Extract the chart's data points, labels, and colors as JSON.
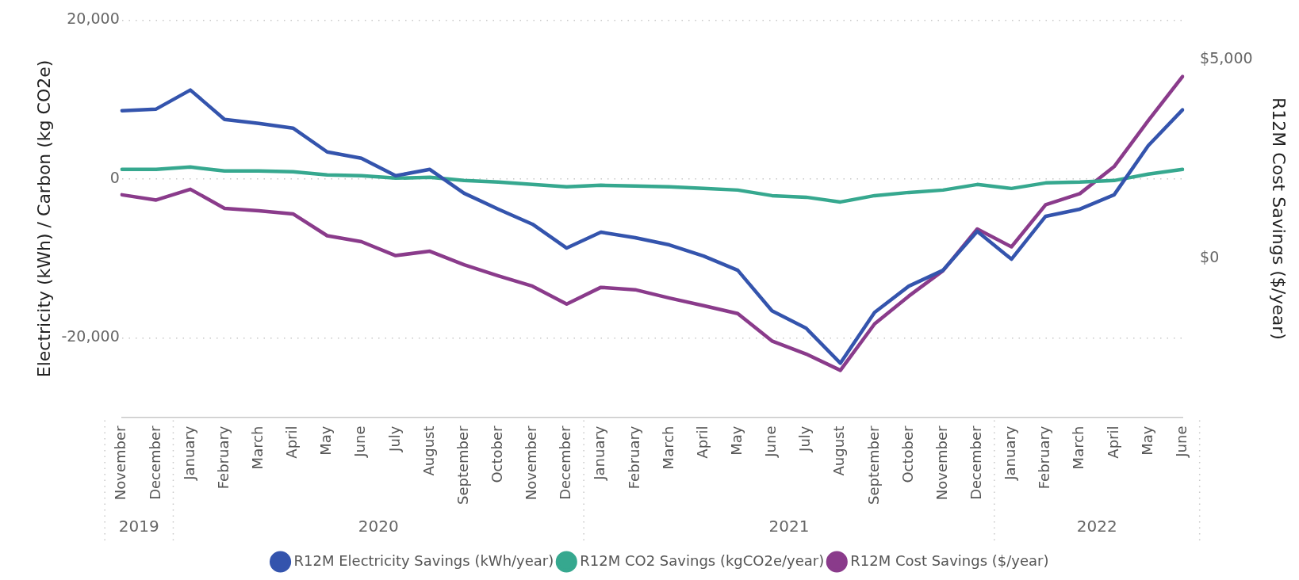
{
  "chart_data": {
    "type": "line",
    "ylabel": "Electricity (kWh) / Carbon (kg CO2e)",
    "y2label": "R12M Cost Savings ($/year)",
    "categories": [
      "November",
      "December",
      "January",
      "February",
      "March",
      "April",
      "May",
      "June",
      "July",
      "August",
      "September",
      "October",
      "November",
      "December",
      "January",
      "February",
      "March",
      "April",
      "May",
      "June",
      "July",
      "August",
      "September",
      "October",
      "November",
      "December",
      "January",
      "February",
      "March",
      "April",
      "May",
      "June"
    ],
    "annotations": [
      "2019",
      "2020",
      "2021",
      "2022"
    ],
    "series": [
      {
        "name": "R12M Electricity Savings (kWh/year)",
        "color": "#3454ad",
        "values": [
          8600,
          8800,
          11200,
          7500,
          7000,
          6400,
          3400,
          2600,
          400,
          1200,
          -1800,
          -3800,
          -5700,
          -8700,
          -6700,
          -7400,
          -8300,
          -9700,
          -11500,
          -16600,
          -18800,
          -23200,
          -16800,
          -13500,
          -11500,
          -6600,
          -10100,
          -4700,
          -3800,
          -2000,
          4200,
          8700
        ]
      },
      {
        "name": "R12M CO2 Savings (kgCO2e/year)",
        "color": "#36a88f",
        "values": [
          1200,
          1200,
          1500,
          1000,
          1000,
          900,
          500,
          400,
          100,
          200,
          -200,
          -400,
          -700,
          -1000,
          -800,
          -900,
          -1000,
          -1200,
          -1400,
          -2100,
          -2300,
          -2900,
          -2100,
          -1700,
          -1400,
          -700,
          -1200,
          -500,
          -400,
          -200,
          600,
          1200
        ]
      },
      {
        "name": "R12M Cost Savings ($/year)",
        "color": "#8a3b8b",
        "axis": "y2",
        "values": [
          1600,
          1470,
          1740,
          1260,
          1200,
          1120,
          570,
          420,
          70,
          180,
          -160,
          -440,
          -700,
          -1150,
          -730,
          -790,
          -1000,
          -1190,
          -1390,
          -2080,
          -2410,
          -2820,
          -1650,
          -950,
          -310,
          740,
          290,
          1350,
          1630,
          2310,
          3470,
          4580
        ]
      }
    ],
    "ylim": [
      -30000,
      20000
    ],
    "yticks": [
      {
        "value": 20000,
        "label": "20,000"
      },
      {
        "value": 0,
        "label": "0"
      },
      {
        "value": -20000,
        "label": "-20,000"
      }
    ],
    "y2lim": [
      -4000,
      6000
    ],
    "y2ticks": [
      {
        "value": 5000,
        "label": "$5,000"
      },
      {
        "value": 0,
        "label": "$0"
      }
    ],
    "grid": "y",
    "legend": "bottom",
    "marker": "none",
    "line_style": "solid"
  }
}
